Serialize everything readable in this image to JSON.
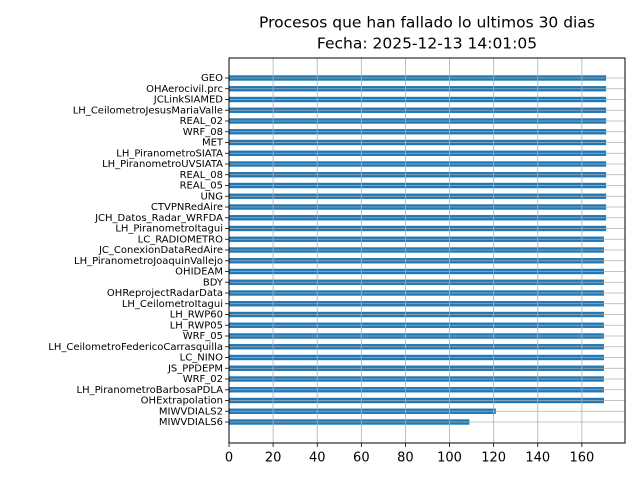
{
  "chart_data": {
    "type": "barh",
    "title": "Procesos que han fallado lo ultimos 30 dias",
    "subtitle": "Fecha: 2025-12-13 14:01:05",
    "categories": [
      "GEO",
      "OHAerocivil.prc",
      "JCLinkSIAMED",
      "LH_CeilometroJesusMariaValle",
      "REAL_02",
      "WRF_08",
      "MET",
      "LH_PiranometroSIATA",
      "LH_PiranometroUVSIATA",
      "REAL_08",
      "REAL_05",
      "UNG",
      "CTVPNRedAire",
      "JCH_Datos_Radar_WRFDA",
      "LH_PiranometroItagui",
      "LC_RADIOMETRO",
      "JC_ConexionDataRedAire",
      "LH_PiranometroJoaquinVallejo",
      "OHIDEAM",
      "BDY",
      "OHReprojectRadarData",
      "LH_CeilometroItagui",
      "LH_RWP60",
      "LH_RWP05",
      "WRF_05",
      "LH_CeilometroFedericoCarrasquilla",
      "LC_NINO",
      "JS_PPDEPM",
      "WRF_02",
      "LH_PiranometroBarbosaPDLA",
      "OHExtrapolation",
      "MIWVDIALS2",
      "MIWVDIALS6"
    ],
    "values": [
      171,
      171,
      171,
      171,
      171,
      171,
      171,
      171,
      171,
      171,
      171,
      171,
      171,
      171,
      171,
      170,
      170,
      170,
      170,
      170,
      170,
      170,
      170,
      170,
      170,
      170,
      170,
      170,
      170,
      170,
      170,
      121,
      109
    ],
    "color": "#1f77b4",
    "xlim": [
      0,
      179.55
    ],
    "xticks": [
      0,
      20,
      40,
      60,
      80,
      100,
      120,
      140,
      160
    ],
    "grid": true
  }
}
